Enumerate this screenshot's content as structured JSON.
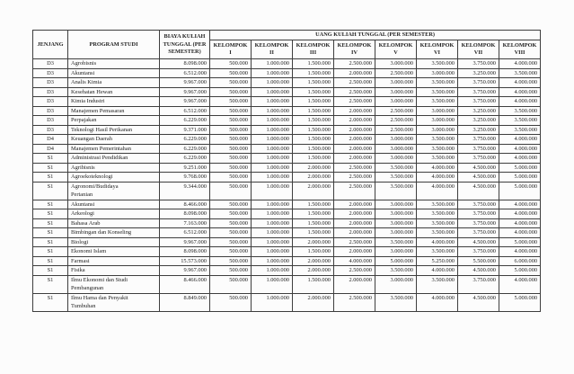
{
  "colors": {
    "page_background": "#fcfcfc",
    "text": "#1f1f1f",
    "border": "#3e3e3e"
  },
  "table": {
    "headers": {
      "jenjang": "JENJANG",
      "program_studi": "PROGRAM STUDI",
      "biaya": "BIAYA KULIAH TUNGGAL (PER SEMESTER)",
      "uang_kuliah_tunggal": "UANG KULIAH TUNGGAL (PER SEMESTER)",
      "kelompok_label": "KELOMPOK",
      "kelompok_numerals": [
        "I",
        "II",
        "III",
        "IV",
        "V",
        "VI",
        "VII",
        "VIII"
      ]
    },
    "rows": [
      {
        "jenjang": "D3",
        "program": "Agrobisnis",
        "biaya": "8.098.000",
        "ukt": [
          "500.000",
          "1.000.000",
          "1.500.000",
          "2.500.000",
          "3.000.000",
          "3.500.000",
          "3.750.000",
          "4.000.000"
        ]
      },
      {
        "jenjang": "D3",
        "program": "Akuntansi",
        "biaya": "6.512.000",
        "ukt": [
          "500.000",
          "1.000.000",
          "1.500.000",
          "2.000.000",
          "2.500.000",
          "3.000.000",
          "3.250.000",
          "3.500.000"
        ]
      },
      {
        "jenjang": "D3",
        "program": "Analis Kimia",
        "biaya": "9.967.000",
        "ukt": [
          "500.000",
          "1.000.000",
          "1.500.000",
          "2.500.000",
          "3.000.000",
          "3.500.000",
          "3.750.000",
          "4.000.000"
        ]
      },
      {
        "jenjang": "D3",
        "program": "Kesehatan Hewan",
        "biaya": "9.967.000",
        "ukt": [
          "500.000",
          "1.000.000",
          "1.500.000",
          "2.500.000",
          "3.000.000",
          "3.500.000",
          "3.750.000",
          "4.000.000"
        ]
      },
      {
        "jenjang": "D3",
        "program": "Kimia Industri",
        "biaya": "9.967.000",
        "ukt": [
          "500.000",
          "1.000.000",
          "1.500.000",
          "2.500.000",
          "3.000.000",
          "3.500.000",
          "3.750.000",
          "4.000.000"
        ]
      },
      {
        "jenjang": "D3",
        "program": "Manajemen Pemasaran",
        "biaya": "6.512.000",
        "ukt": [
          "500.000",
          "1.000.000",
          "1.500.000",
          "2.000.000",
          "2.500.000",
          "3.000.000",
          "3.250.000",
          "3.500.000"
        ]
      },
      {
        "jenjang": "D3",
        "program": "Perpajakan",
        "biaya": "6.229.000",
        "ukt": [
          "500.000",
          "1.000.000",
          "1.500.000",
          "2.000.000",
          "2.500.000",
          "3.000.000",
          "3.250.000",
          "3.500.000"
        ]
      },
      {
        "jenjang": "D3",
        "program": "Teknologi Hasil Perikanan",
        "biaya": "9.371.000",
        "ukt": [
          "500.000",
          "1.000.000",
          "1.500.000",
          "2.000.000",
          "2.500.000",
          "3.000.000",
          "3.250.000",
          "3.500.000"
        ]
      },
      {
        "jenjang": "D4",
        "program": "Keuangan Daerah",
        "biaya": "6.229.000",
        "ukt": [
          "500.000",
          "1.000.000",
          "1.500.000",
          "2.000.000",
          "3.000.000",
          "3.500.000",
          "3.750.000",
          "4.000.000"
        ]
      },
      {
        "jenjang": "D4",
        "program": "Manajemen Pemerintahan",
        "biaya": "6.229.000",
        "ukt": [
          "500.000",
          "1.000.000",
          "1.500.000",
          "2.000.000",
          "3.000.000",
          "3.500.000",
          "3.750.000",
          "4.000.000"
        ]
      },
      {
        "jenjang": "S1",
        "program": "Administrasi Pendidikan",
        "biaya": "6.229.000",
        "ukt": [
          "500.000",
          "1.000.000",
          "1.500.000",
          "2.000.000",
          "3.000.000",
          "3.500.000",
          "3.750.000",
          "4.000.000"
        ]
      },
      {
        "jenjang": "S1",
        "program": "Agribisnis",
        "biaya": "9.251.000",
        "ukt": [
          "500.000",
          "1.000.000",
          "2.000.000",
          "2.500.000",
          "3.500.000",
          "4.000.000",
          "4.500.000",
          "5.000.000"
        ]
      },
      {
        "jenjang": "S1",
        "program": "Agroekoteknologi",
        "biaya": "9.768.000",
        "ukt": [
          "500.000",
          "1.000.000",
          "2.000.000",
          "2.500.000",
          "3.500.000",
          "4.000.000",
          "4.500.000",
          "5.000.000"
        ]
      },
      {
        "jenjang": "S1",
        "program": "Agronomi/Budidaya\nPertanian",
        "biaya": "9.344.000",
        "ukt": [
          "500.000",
          "1.000.000",
          "2.000.000",
          "2.500.000",
          "3.500.000",
          "4.000.000",
          "4.500.000",
          "5.000.000"
        ]
      },
      {
        "jenjang": "S1",
        "program": "Akuntansi",
        "biaya": "8.466.000",
        "ukt": [
          "500.000",
          "1.000.000",
          "1.500.000",
          "2.000.000",
          "3.000.000",
          "3.500.000",
          "3.750.000",
          "4.000.000"
        ]
      },
      {
        "jenjang": "S1",
        "program": "Arkeologi",
        "biaya": "8.098.000",
        "ukt": [
          "500.000",
          "1.000.000",
          "1.500.000",
          "2.000.000",
          "3.000.000",
          "3.500.000",
          "3.750.000",
          "4.000.000"
        ]
      },
      {
        "jenjang": "S1",
        "program": "Bahasa Arab",
        "biaya": "7.163.000",
        "ukt": [
          "500.000",
          "1.000.000",
          "1.500.000",
          "2.000.000",
          "3.000.000",
          "3.500.000",
          "3.750.000",
          "4.000.000"
        ]
      },
      {
        "jenjang": "S1",
        "program": "Bimbingan dan Konseling",
        "biaya": "6.512.000",
        "ukt": [
          "500.000",
          "1.000.000",
          "1.500.000",
          "2.000.000",
          "3.000.000",
          "3.500.000",
          "3.750.000",
          "4.000.000"
        ]
      },
      {
        "jenjang": "S1",
        "program": "Biologi",
        "biaya": "9.967.000",
        "ukt": [
          "500.000",
          "1.000.000",
          "2.000.000",
          "2.500.000",
          "3.500.000",
          "4.000.000",
          "4.500.000",
          "5.000.000"
        ]
      },
      {
        "jenjang": "S1",
        "program": "Ekonomi Islam",
        "biaya": "8.098.000",
        "ukt": [
          "500.000",
          "1.000.000",
          "1.500.000",
          "2.000.000",
          "3.000.000",
          "3.500.000",
          "3.750.000",
          "4.000.000"
        ]
      },
      {
        "jenjang": "S1",
        "program": "Farmasi",
        "biaya": "15.573.000",
        "ukt": [
          "500.000",
          "1.000.000",
          "2.000.000",
          "4.000.000",
          "5.000.000",
          "5.250.000",
          "5.500.000",
          "6.000.000"
        ]
      },
      {
        "jenjang": "S1",
        "program": "Fisika",
        "biaya": "9.967.000",
        "ukt": [
          "500.000",
          "1.000.000",
          "2.000.000",
          "2.500.000",
          "3.500.000",
          "4.000.000",
          "4.500.000",
          "5.000.000"
        ]
      },
      {
        "jenjang": "S1",
        "program": "Ilmu Ekonomi dan Studi\nPembangunan",
        "biaya": "8.466.000",
        "ukt": [
          "500.000",
          "1.000.000",
          "1.500.000",
          "2.000.000",
          "3.000.000",
          "3.500.000",
          "3.750.000",
          "4.000.000"
        ]
      },
      {
        "jenjang": "S1",
        "program": "Ilmu Hama dan Penyakit\nTumbuhan",
        "biaya": "8.849.000",
        "ukt": [
          "500.000",
          "1.000.000",
          "2.000.000",
          "2.500.000",
          "3.500.000",
          "4.000.000",
          "4.500.000",
          "5.000.000"
        ]
      }
    ]
  }
}
